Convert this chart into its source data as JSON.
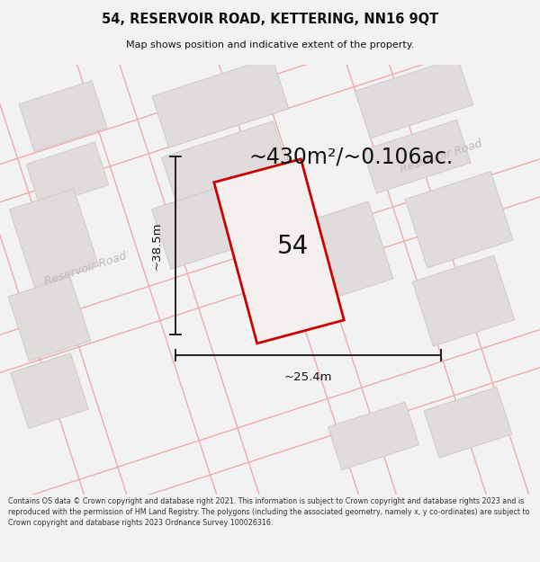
{
  "title": "54, RESERVOIR ROAD, KETTERING, NN16 9QT",
  "subtitle": "Map shows position and indicative extent of the property.",
  "area_text": "~430m²/~0.106ac.",
  "number_label": "54",
  "dim_width": "~25.4m",
  "dim_height": "~38.5m",
  "road_label_tr": "Reservoir Road",
  "road_label_bl": "Reservoir Road",
  "footer": "Contains OS data © Crown copyright and database right 2021. This information is subject to Crown copyright and database rights 2023 and is reproduced with the permission of HM Land Registry. The polygons (including the associated geometry, namely x, y co-ordinates) are subject to Crown copyright and database rights 2023 Ordnance Survey 100026316.",
  "bg_color": "#f2f2f2",
  "map_bg": "#eeecec",
  "building_fill": "#e0dcdc",
  "building_stroke": "#d0c8c8",
  "plot_fill": "#f5f0f0",
  "plot_stroke": "#cc0000",
  "road_line_color": "#f0aaaa",
  "dim_color": "#111111",
  "title_color": "#111111",
  "road_text_color": "#c0b8b8"
}
